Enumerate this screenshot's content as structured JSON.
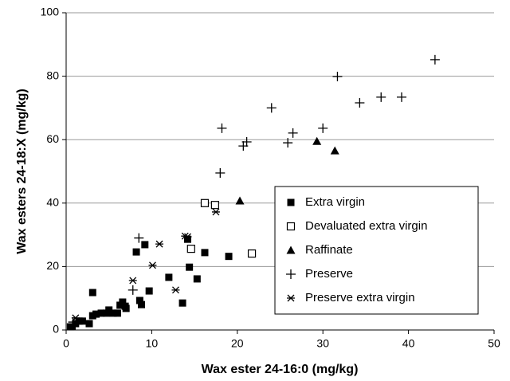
{
  "chart_data": {
    "type": "scatter",
    "x_label": "Wax ester 24-16:0 (mg/kg)",
    "y_label": "Wax esters 24-18:X (mg/kg)",
    "xlim": [
      0,
      50
    ],
    "xticks": [
      0,
      10,
      20,
      30,
      40,
      50
    ],
    "ylim": [
      0,
      100
    ],
    "yticks": [
      0,
      20,
      40,
      60,
      80,
      100
    ],
    "grid": true,
    "legend": "lower right",
    "series": [
      {
        "name": "Extra virgin",
        "color": "#000000",
        "marker": "square",
        "x": [
          0.5,
          0.7,
          1.1,
          1.5,
          1.9,
          2.7,
          3.1,
          3.1,
          3.5,
          4.1,
          4.7,
          5.0,
          5.5,
          6.0,
          6.3,
          6.6,
          6.9,
          7.0,
          8.2,
          8.6,
          8.8,
          9.2,
          9.7,
          12.0,
          13.6,
          14.2,
          14.4,
          15.3,
          16.2,
          19.0
        ],
        "values": [
          1.0,
          1.0,
          2.0,
          2.8,
          2.8,
          2.0,
          11.8,
          4.5,
          5.0,
          5.3,
          5.3,
          6.3,
          5.3,
          5.3,
          7.8,
          8.8,
          7.5,
          6.8,
          24.6,
          9.3,
          8.0,
          26.9,
          12.3,
          16.6,
          8.5,
          28.6,
          19.8,
          16.1,
          24.4,
          23.2
        ]
      },
      {
        "name": "Devaluated extra virgin",
        "color": "#000000",
        "marker": "open-square",
        "x": [
          16.2,
          17.4,
          14.6,
          21.7
        ],
        "values": [
          40.0,
          39.4,
          25.6,
          24.1
        ]
      },
      {
        "name": "Raffinate",
        "color": "#000000",
        "marker": "triangle",
        "x": [
          20.3,
          29.3,
          31.4
        ],
        "values": [
          40.7,
          59.5,
          56.5
        ]
      },
      {
        "name": "Preserve",
        "color": "#000000",
        "marker": "plus",
        "x": [
          0.8,
          7.8,
          8.5,
          18.0,
          18.2,
          20.7,
          21.1,
          24.0,
          25.9,
          26.5,
          30.0,
          31.7,
          34.3,
          36.8,
          39.2,
          43.1
        ],
        "values": [
          2.5,
          12.6,
          29.0,
          49.5,
          63.6,
          58.0,
          59.3,
          70.0,
          59.0,
          62.1,
          63.6,
          79.9,
          71.6,
          73.4,
          73.4,
          85.2
        ]
      },
      {
        "name": "Preserve extra virgin",
        "color": "#000000",
        "marker": "star",
        "x": [
          1.1,
          7.8,
          10.9,
          10.1,
          12.8,
          13.9,
          14.2,
          17.5
        ],
        "values": [
          3.8,
          15.6,
          27.1,
          20.4,
          12.6,
          29.6,
          29.4,
          37.2
        ]
      }
    ]
  }
}
